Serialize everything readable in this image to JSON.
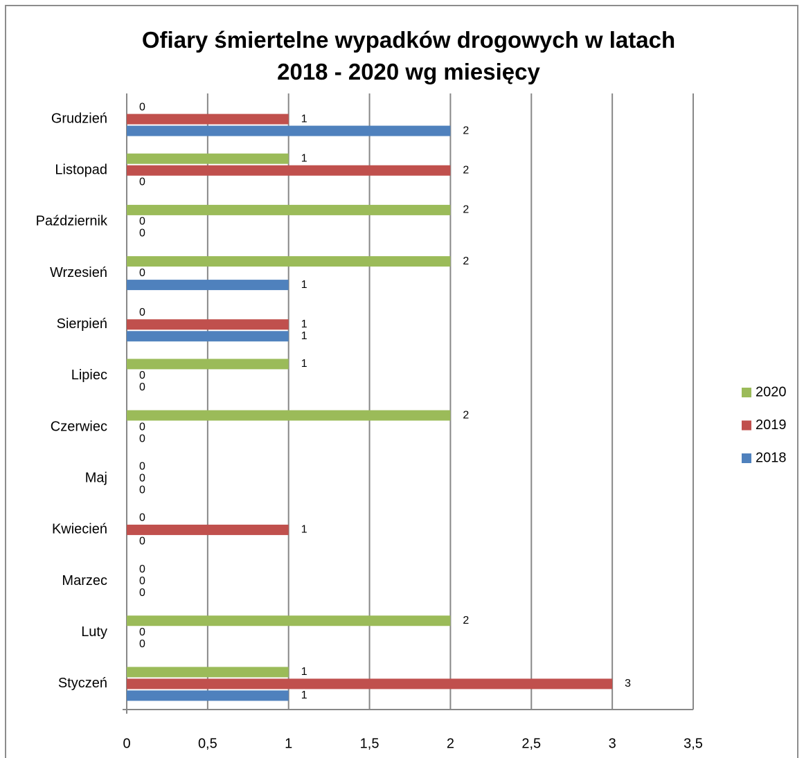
{
  "chart_data": {
    "type": "hbar",
    "title": "Ofiary śmiertelne wypadków drogowych w latach 2018 - 2020 wg miesięcy",
    "categories": [
      "Styczeń",
      "Luty",
      "Marzec",
      "Kwiecień",
      "Maj",
      "Czerwiec",
      "Lipiec",
      "Sierpień",
      "Wrzesień",
      "Październik",
      "Listopad",
      "Grudzień"
    ],
    "series": [
      {
        "name": "2018",
        "color": "#4f81bd",
        "values": [
          1,
          0,
          0,
          0,
          0,
          0,
          0,
          1,
          1,
          0,
          0,
          2
        ]
      },
      {
        "name": "2019",
        "color": "#c0504d",
        "values": [
          3,
          0,
          0,
          1,
          0,
          0,
          0,
          1,
          0,
          0,
          2,
          1
        ]
      },
      {
        "name": "2020",
        "color": "#9bbb59",
        "values": [
          1,
          2,
          0,
          0,
          0,
          2,
          1,
          0,
          2,
          2,
          1,
          0
        ]
      }
    ],
    "xlim": [
      0,
      3.5
    ],
    "xticks": [
      0,
      {
        "value": 0.5,
        "label": "0,5"
      },
      1,
      {
        "value": 1.5,
        "label": "1,5"
      },
      2,
      {
        "value": 2.5,
        "label": "2,5"
      },
      3,
      {
        "value": 3.5,
        "label": "3,5"
      }
    ],
    "grid": true,
    "legend": "right"
  }
}
